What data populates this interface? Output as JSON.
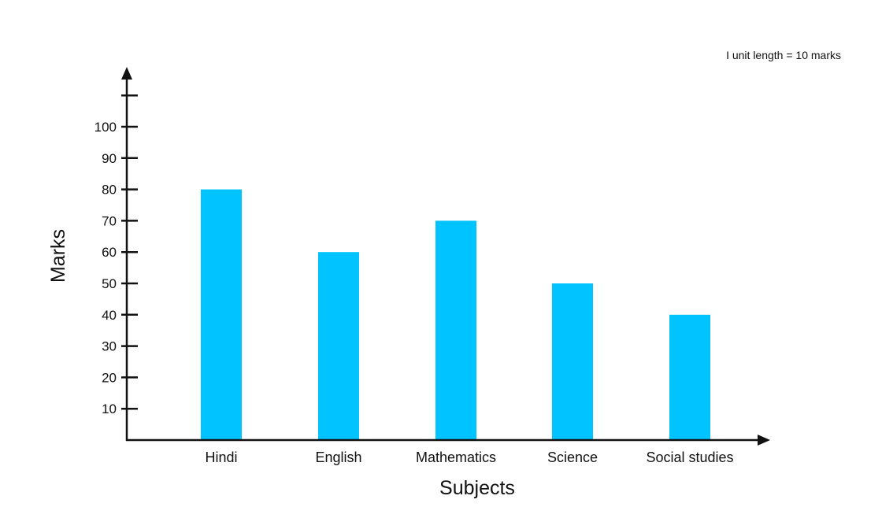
{
  "colors": {
    "bar": "#00c3ff",
    "axis": "#111111",
    "text": "#111111",
    "background": "#ffffff"
  },
  "chart_data": {
    "type": "bar",
    "title": "",
    "xlabel": "Subjects",
    "ylabel": "Marks",
    "note": "I unit length = 10 marks",
    "categories": [
      "Hindi",
      "English",
      "Mathematics",
      "Science",
      "Social studies"
    ],
    "values": [
      80,
      60,
      70,
      50,
      40
    ],
    "yticks": [
      "10",
      "20",
      "30",
      "40",
      "50",
      "60",
      "70",
      "80",
      "90",
      "100"
    ],
    "ylim": [
      0,
      110
    ],
    "grid": false,
    "legend": "none"
  }
}
